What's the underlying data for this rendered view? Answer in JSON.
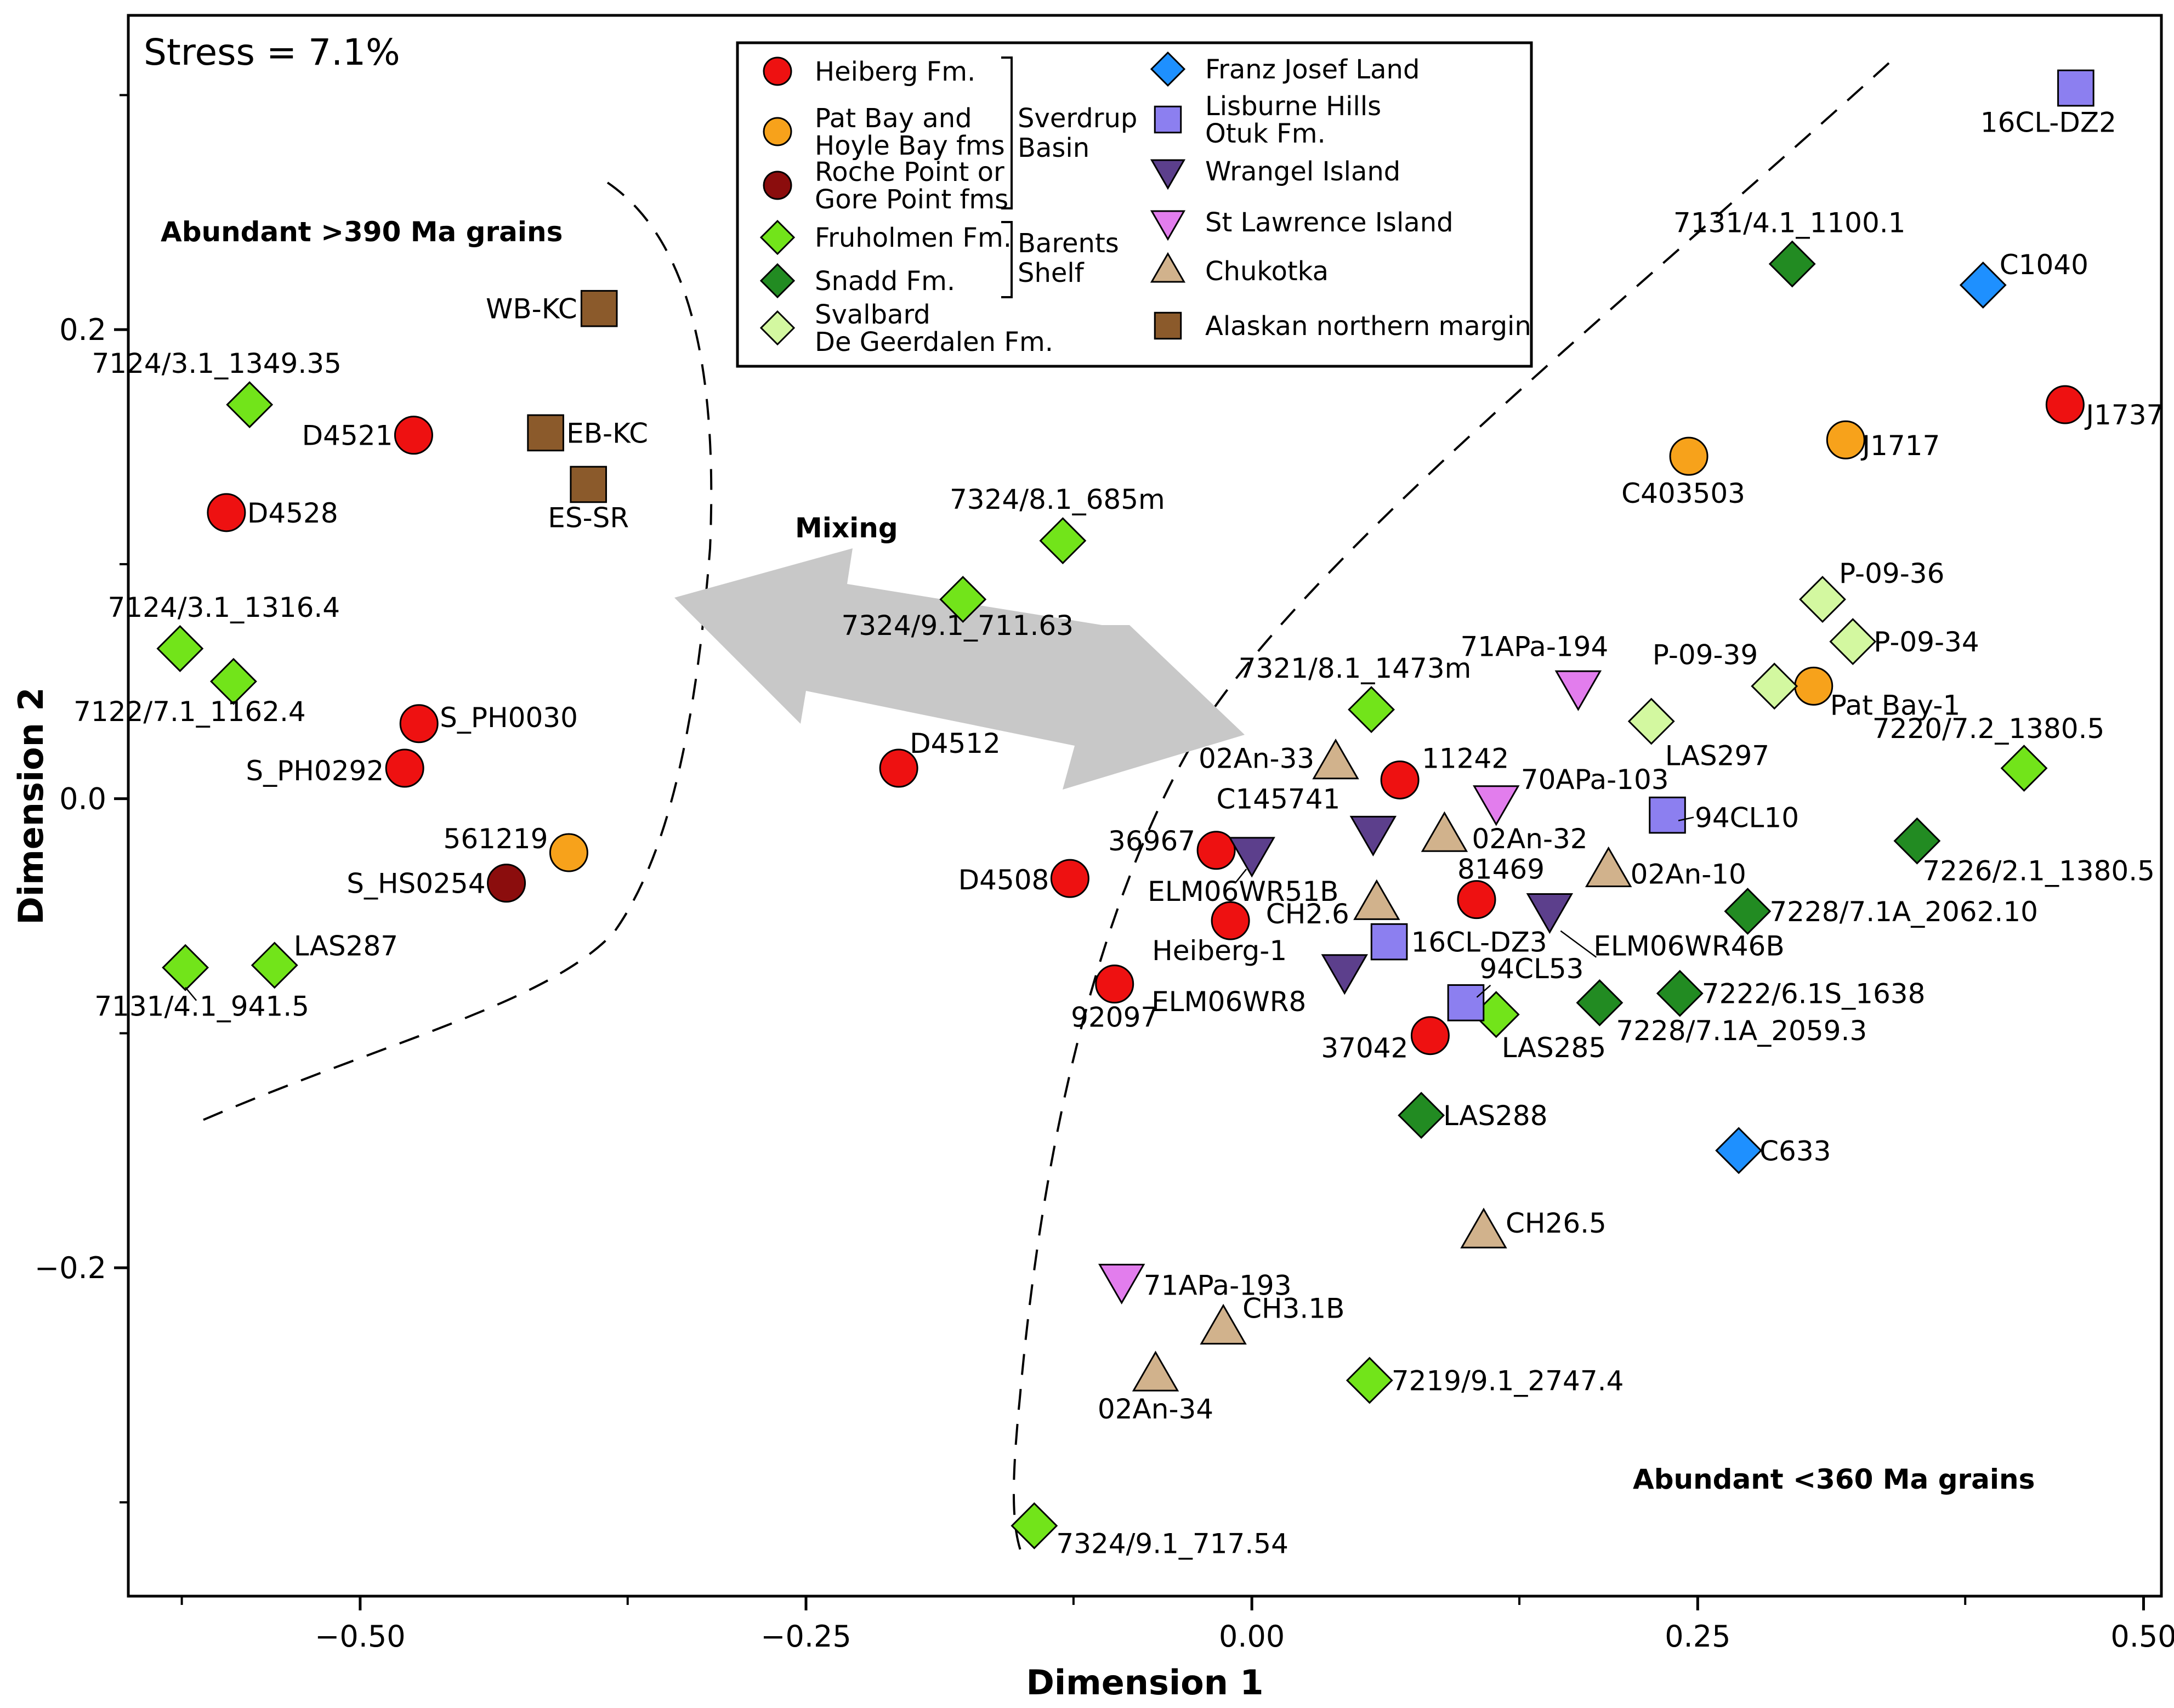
{
  "chart_data": {
    "type": "scatter",
    "title": "",
    "xlabel": "Dimension 1",
    "ylabel": "Dimension 2",
    "xlim": [
      -0.63,
      0.51
    ],
    "ylim": [
      -0.34,
      0.334
    ],
    "xticks": [
      -0.5,
      -0.25,
      0.0,
      0.25,
      0.5
    ],
    "xtick_labels": [
      "−0.50",
      "−0.25",
      "0.00",
      "0.25",
      "0.50"
    ],
    "yticks": [
      0.2,
      0.0,
      -0.2
    ],
    "ytick_labels": [
      "0.2",
      "0.0",
      "−0.2"
    ],
    "stress": "Stress = 7.1%",
    "annotations": {
      "old_grains": "Abundant >390 Ma grains",
      "young_grains": "Abundant <360 Ma grains",
      "mixing": "Mixing"
    },
    "groups": {
      "sverdrup": "Sverdrup\nBasin",
      "barents": "Barents\nShelf"
    },
    "series": [
      {
        "name": "Heiberg Fm.",
        "marker": "circle",
        "color": "#ee1111",
        "points": [
          {
            "label": "D4521",
            "x": -0.47,
            "y": 0.155
          },
          {
            "label": "D4528",
            "x": -0.575,
            "y": 0.122
          },
          {
            "label": "S_PH0030",
            "x": -0.467,
            "y": 0.032
          },
          {
            "label": "S_PH0292",
            "x": -0.475,
            "y": 0.013
          },
          {
            "label": "D4512",
            "x": -0.198,
            "y": 0.013
          },
          {
            "label": "D4508",
            "x": -0.102,
            "y": -0.034
          },
          {
            "label": "92097",
            "x": -0.077,
            "y": -0.079
          },
          {
            "label": "36967",
            "x": -0.02,
            "y": -0.022
          },
          {
            "label": "Heiberg-1",
            "x": -0.012,
            "y": -0.052
          },
          {
            "label": "11242",
            "x": 0.083,
            "y": 0.008
          },
          {
            "label": "81469",
            "x": 0.126,
            "y": -0.043
          },
          {
            "label": "37042",
            "x": 0.1,
            "y": -0.101
          },
          {
            "label": "J1737",
            "x": 0.456,
            "y": 0.168
          }
        ]
      },
      {
        "name": "Pat Bay and\nHoyle Bay fms",
        "marker": "circle",
        "color": "#f7a21b",
        "points": [
          {
            "label": "561219",
            "x": -0.383,
            "y": -0.023
          },
          {
            "label": "C403503",
            "x": 0.245,
            "y": 0.146
          },
          {
            "label": "J1717",
            "x": 0.333,
            "y": 0.153
          },
          {
            "label": "Pat Bay-1",
            "x": 0.315,
            "y": 0.048
          }
        ]
      },
      {
        "name": "Roche Point or\nGore Point fms",
        "marker": "circle",
        "color": "#8b0d0d",
        "points": [
          {
            "label": "S_HS0254",
            "x": -0.418,
            "y": -0.036
          }
        ]
      },
      {
        "name": "Fruholmen Fm.",
        "marker": "diamond",
        "color": "#72e41a",
        "points": [
          {
            "label": "7124/3.1_1349.35",
            "x": -0.562,
            "y": 0.168
          },
          {
            "label": "7124/3.1_1316.4",
            "x": -0.601,
            "y": 0.064
          },
          {
            "label": "7122/7.1_1162.4",
            "x": -0.571,
            "y": 0.05
          },
          {
            "label": "7131/4.1_941.5",
            "x": -0.598,
            "y": -0.072
          },
          {
            "label": "LAS287",
            "x": -0.548,
            "y": -0.071
          },
          {
            "label": "7324/8.1_685m",
            "x": -0.106,
            "y": 0.11
          },
          {
            "label": "7324/9.1_711.63",
            "x": -0.162,
            "y": 0.085
          },
          {
            "label": "7321/8.1_1473m",
            "x": 0.067,
            "y": 0.038
          },
          {
            "label": "LAS285",
            "x": 0.137,
            "y": -0.092
          },
          {
            "label": "7220/7.2_1380.5",
            "x": 0.433,
            "y": 0.013
          },
          {
            "label": "7219/9.1_2747.4",
            "x": 0.066,
            "y": -0.248
          },
          {
            "label": "7324/9.1_717.54",
            "x": -0.122,
            "y": -0.31
          }
        ]
      },
      {
        "name": "Snadd Fm.",
        "marker": "diamond",
        "color": "#228b22",
        "points": [
          {
            "label": "7131/4.1_1100.1",
            "x": 0.303,
            "y": 0.228
          },
          {
            "label": "7226/2.1_1380.5",
            "x": 0.373,
            "y": -0.018
          },
          {
            "label": "7228/7.1A_2062.10",
            "x": 0.278,
            "y": -0.048
          },
          {
            "label": "7222/6.1S_1638",
            "x": 0.24,
            "y": -0.083
          },
          {
            "label": "7228/7.1A_2059.3",
            "x": 0.195,
            "y": -0.087
          },
          {
            "label": "LAS288",
            "x": 0.095,
            "y": -0.135
          }
        ]
      },
      {
        "name": "Svalbard\nDe Geerdalen Fm.",
        "marker": "diamond",
        "color": "#d3f8a0",
        "points": [
          {
            "label": "P-09-36",
            "x": 0.32,
            "y": 0.085
          },
          {
            "label": "P-09-34",
            "x": 0.337,
            "y": 0.067
          },
          {
            "label": "P-09-39",
            "x": 0.293,
            "y": 0.048
          },
          {
            "label": "LAS297",
            "x": 0.224,
            "y": 0.033
          }
        ]
      },
      {
        "name": "Franz Josef Land",
        "marker": "diamond",
        "color": "#1e90ff",
        "points": [
          {
            "label": "C1040",
            "x": 0.41,
            "y": 0.219
          },
          {
            "label": "C633",
            "x": 0.273,
            "y": -0.15
          }
        ]
      },
      {
        "name": "Lisburne Hills\nOtuk Fm.",
        "marker": "square",
        "color": "#8c7ff0",
        "points": [
          {
            "label": "16CL-DZ2",
            "x": 0.462,
            "y": 0.303
          },
          {
            "label": "94CL10",
            "x": 0.233,
            "y": -0.007
          },
          {
            "label": "16CL-DZ3",
            "x": 0.077,
            "y": -0.061
          },
          {
            "label": "94CL53",
            "x": 0.12,
            "y": -0.087
          }
        ]
      },
      {
        "name": "Wrangel Island",
        "marker": "triangle-down",
        "color": "#5c3f8c",
        "points": [
          {
            "label": "C145741",
            "x": 0.068,
            "y": -0.014
          },
          {
            "label": "ELM06WR51B",
            "x": 0.0,
            "y": -0.023
          },
          {
            "label": "ELM06WR46B",
            "x": 0.167,
            "y": -0.047
          },
          {
            "label": "ELM06WR8",
            "x": 0.052,
            "y": -0.073
          }
        ]
      },
      {
        "name": "St Lawrence Island",
        "marker": "triangle-down",
        "color": "#e27ded",
        "points": [
          {
            "label": "71APa-194",
            "x": 0.183,
            "y": 0.048
          },
          {
            "label": "70APa-103",
            "x": 0.137,
            "y": -0.001
          },
          {
            "label": "71APa-193",
            "x": -0.073,
            "y": -0.205
          }
        ]
      },
      {
        "name": "Chukotka",
        "marker": "triangle-up",
        "color": "#d1b28c",
        "points": [
          {
            "label": "02An-33",
            "x": 0.047,
            "y": 0.015
          },
          {
            "label": "02An-32",
            "x": 0.108,
            "y": -0.016
          },
          {
            "label": "02An-10",
            "x": 0.2,
            "y": -0.031
          },
          {
            "label": "CH2.6",
            "x": 0.07,
            "y": -0.045
          },
          {
            "label": "CH26.5",
            "x": 0.13,
            "y": -0.185
          },
          {
            "label": "CH3.1B",
            "x": -0.016,
            "y": -0.226
          },
          {
            "label": "02An-34",
            "x": -0.054,
            "y": -0.246
          }
        ]
      },
      {
        "name": "Alaskan northern margin",
        "marker": "square",
        "color": "#8b5a2b",
        "points": [
          {
            "label": "WB-KC",
            "x": -0.366,
            "y": 0.209
          },
          {
            "label": "EB-KC",
            "x": -0.396,
            "y": 0.156
          },
          {
            "label": "ES-SR",
            "x": -0.372,
            "y": 0.134
          }
        ]
      }
    ]
  }
}
